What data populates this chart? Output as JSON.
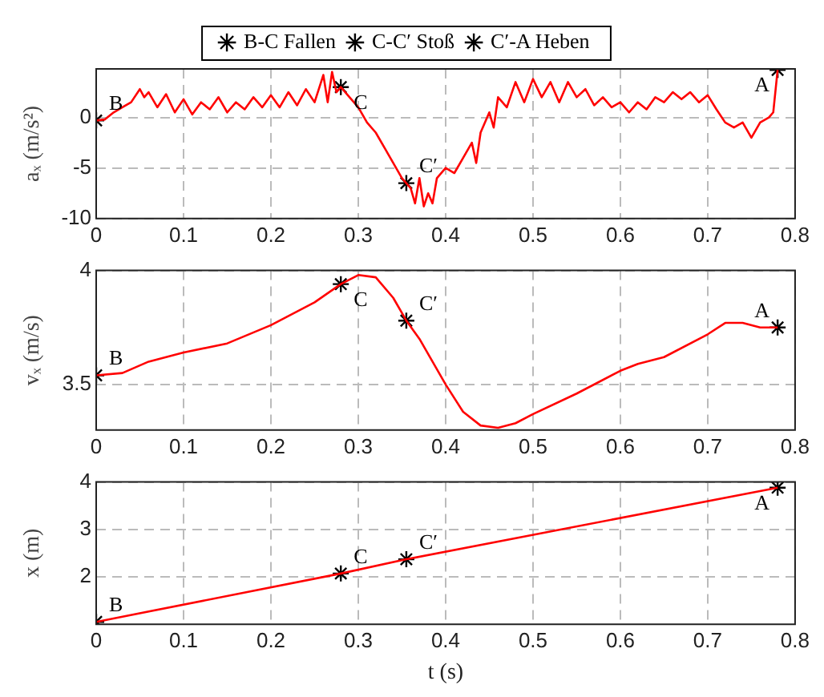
{
  "chart_data": [
    {
      "type": "line",
      "ylabel": "aₓ (m/s²)",
      "xlim": [
        0,
        0.8
      ],
      "xticks": [
        0,
        0.1,
        0.2,
        0.3,
        0.4,
        0.5,
        0.6,
        0.7,
        0.8
      ],
      "ylim": [
        -10,
        4.8
      ],
      "yticks": [
        -10,
        -5,
        0
      ],
      "grid": true,
      "legend": "top",
      "series": [
        {
          "type": "line",
          "color": "#ff0000",
          "marker": "none",
          "x": [
            0,
            0.01,
            0.02,
            0.03,
            0.04,
            0.05,
            0.055,
            0.06,
            0.07,
            0.08,
            0.09,
            0.1,
            0.11,
            0.12,
            0.13,
            0.14,
            0.15,
            0.16,
            0.17,
            0.18,
            0.19,
            0.2,
            0.21,
            0.22,
            0.23,
            0.24,
            0.25,
            0.26,
            0.265,
            0.27,
            0.275,
            0.28,
            0.29,
            0.3,
            0.31,
            0.32,
            0.33,
            0.34,
            0.35,
            0.355,
            0.36,
            0.365,
            0.37,
            0.375,
            0.38,
            0.385,
            0.39,
            0.4,
            0.41,
            0.42,
            0.43,
            0.435,
            0.44,
            0.45,
            0.455,
            0.46,
            0.47,
            0.48,
            0.49,
            0.5,
            0.51,
            0.52,
            0.53,
            0.54,
            0.55,
            0.56,
            0.57,
            0.58,
            0.59,
            0.6,
            0.61,
            0.62,
            0.63,
            0.64,
            0.65,
            0.66,
            0.67,
            0.68,
            0.69,
            0.7,
            0.71,
            0.72,
            0.73,
            0.74,
            0.75,
            0.76,
            0.77,
            0.775,
            0.78
          ],
          "values": [
            -0.3,
            -0.2,
            0.5,
            1.0,
            1.5,
            2.8,
            2.0,
            2.5,
            1.0,
            2.3,
            0.5,
            1.8,
            0.3,
            1.5,
            0.8,
            2.0,
            0.5,
            1.5,
            0.8,
            2.0,
            1.0,
            2.2,
            1.0,
            2.5,
            1.2,
            2.8,
            1.5,
            4.2,
            1.5,
            4.5,
            2.5,
            3.0,
            2.0,
            1.0,
            -0.5,
            -1.5,
            -3.0,
            -4.5,
            -6.0,
            -6.5,
            -7.0,
            -8.5,
            -6.0,
            -8.8,
            -7.5,
            -8.5,
            -6.0,
            -5.0,
            -5.5,
            -4.0,
            -2.5,
            -4.5,
            -1.5,
            0.5,
            -1.0,
            2.0,
            1.0,
            3.5,
            1.5,
            3.8,
            2.0,
            3.5,
            1.5,
            3.5,
            2.0,
            2.8,
            1.2,
            2.0,
            1.0,
            1.5,
            0.5,
            1.5,
            0.8,
            2.0,
            1.5,
            2.5,
            1.8,
            2.5,
            1.5,
            2.2,
            0.8,
            -0.5,
            -1.0,
            -0.5,
            -2.0,
            -0.5,
            0,
            0.5,
            4.7
          ]
        },
        {
          "type": "scatter",
          "name": "B-C Fallen",
          "color": "#000000",
          "marker": "cross",
          "x": [
            0,
            0.28
          ],
          "values": [
            -0.3,
            3.0
          ]
        },
        {
          "type": "scatter",
          "name": "C-C′ Stoß",
          "color": "#000000",
          "marker": "cross",
          "x": [
            0.355
          ],
          "values": [
            -6.5
          ]
        },
        {
          "type": "scatter",
          "name": "C′-A Heben",
          "color": "#000000",
          "marker": "cross",
          "x": [
            0.78
          ],
          "values": [
            4.7
          ]
        }
      ],
      "annotations": [
        {
          "text": "B",
          "x": 0,
          "y": -0.3
        },
        {
          "text": "C",
          "x": 0.28,
          "y": 3.0
        },
        {
          "text": "C′",
          "x": 0.355,
          "y": -6.5
        },
        {
          "text": "A",
          "x": 0.78,
          "y": 4.7
        }
      ]
    },
    {
      "type": "line",
      "ylabel": "vₓ (m/s)",
      "xlim": [
        0,
        0.8
      ],
      "xticks": [
        0,
        0.1,
        0.2,
        0.3,
        0.4,
        0.5,
        0.6,
        0.7,
        0.8
      ],
      "ylim": [
        3.3,
        4
      ],
      "yticks": [
        3.5,
        4
      ],
      "grid": true,
      "series": [
        {
          "type": "line",
          "color": "#ff0000",
          "marker": "none",
          "x": [
            0,
            0.03,
            0.06,
            0.1,
            0.15,
            0.2,
            0.25,
            0.28,
            0.3,
            0.32,
            0.34,
            0.355,
            0.37,
            0.4,
            0.42,
            0.44,
            0.46,
            0.48,
            0.5,
            0.55,
            0.6,
            0.62,
            0.65,
            0.7,
            0.72,
            0.74,
            0.76,
            0.78
          ],
          "values": [
            3.54,
            3.55,
            3.6,
            3.64,
            3.68,
            3.76,
            3.86,
            3.94,
            3.98,
            3.97,
            3.88,
            3.78,
            3.7,
            3.5,
            3.38,
            3.32,
            3.31,
            3.33,
            3.37,
            3.46,
            3.56,
            3.59,
            3.62,
            3.72,
            3.77,
            3.77,
            3.75,
            3.75
          ]
        },
        {
          "type": "scatter",
          "color": "#000000",
          "marker": "cross",
          "x": [
            0,
            0.28
          ],
          "values": [
            3.54,
            3.94
          ]
        },
        {
          "type": "scatter",
          "color": "#000000",
          "marker": "cross",
          "x": [
            0.355
          ],
          "values": [
            3.78
          ]
        },
        {
          "type": "scatter",
          "color": "#000000",
          "marker": "cross",
          "x": [
            0.78
          ],
          "values": [
            3.75
          ]
        }
      ],
      "annotations": [
        {
          "text": "B",
          "x": 0,
          "y": 3.54
        },
        {
          "text": "C",
          "x": 0.28,
          "y": 3.94
        },
        {
          "text": "C′",
          "x": 0.355,
          "y": 3.78
        },
        {
          "text": "A",
          "x": 0.78,
          "y": 3.75
        }
      ]
    },
    {
      "type": "line",
      "xlabel": "t (s)",
      "ylabel": "x (m)",
      "xlim": [
        0,
        0.8
      ],
      "xticks": [
        0,
        0.1,
        0.2,
        0.3,
        0.4,
        0.5,
        0.6,
        0.7,
        0.8
      ],
      "ylim": [
        1,
        4
      ],
      "yticks": [
        2,
        3,
        4
      ],
      "grid": true,
      "series": [
        {
          "type": "line",
          "color": "#ff0000",
          "marker": "none",
          "x": [
            0,
            0.28,
            0.355,
            0.78
          ],
          "values": [
            1.05,
            2.07,
            2.37,
            3.88
          ]
        },
        {
          "type": "scatter",
          "color": "#000000",
          "marker": "cross",
          "x": [
            0,
            0.28
          ],
          "values": [
            1.05,
            2.07
          ]
        },
        {
          "type": "scatter",
          "color": "#000000",
          "marker": "cross",
          "x": [
            0.355
          ],
          "values": [
            2.37
          ]
        },
        {
          "type": "scatter",
          "color": "#000000",
          "marker": "cross",
          "x": [
            0.78
          ],
          "values": [
            3.88
          ]
        }
      ],
      "annotations": [
        {
          "text": "B",
          "x": 0,
          "y": 1.05
        },
        {
          "text": "C",
          "x": 0.28,
          "y": 2.07
        },
        {
          "text": "C′",
          "x": 0.355,
          "y": 2.37
        },
        {
          "text": "A",
          "x": 0.78,
          "y": 3.88
        }
      ]
    }
  ]
}
